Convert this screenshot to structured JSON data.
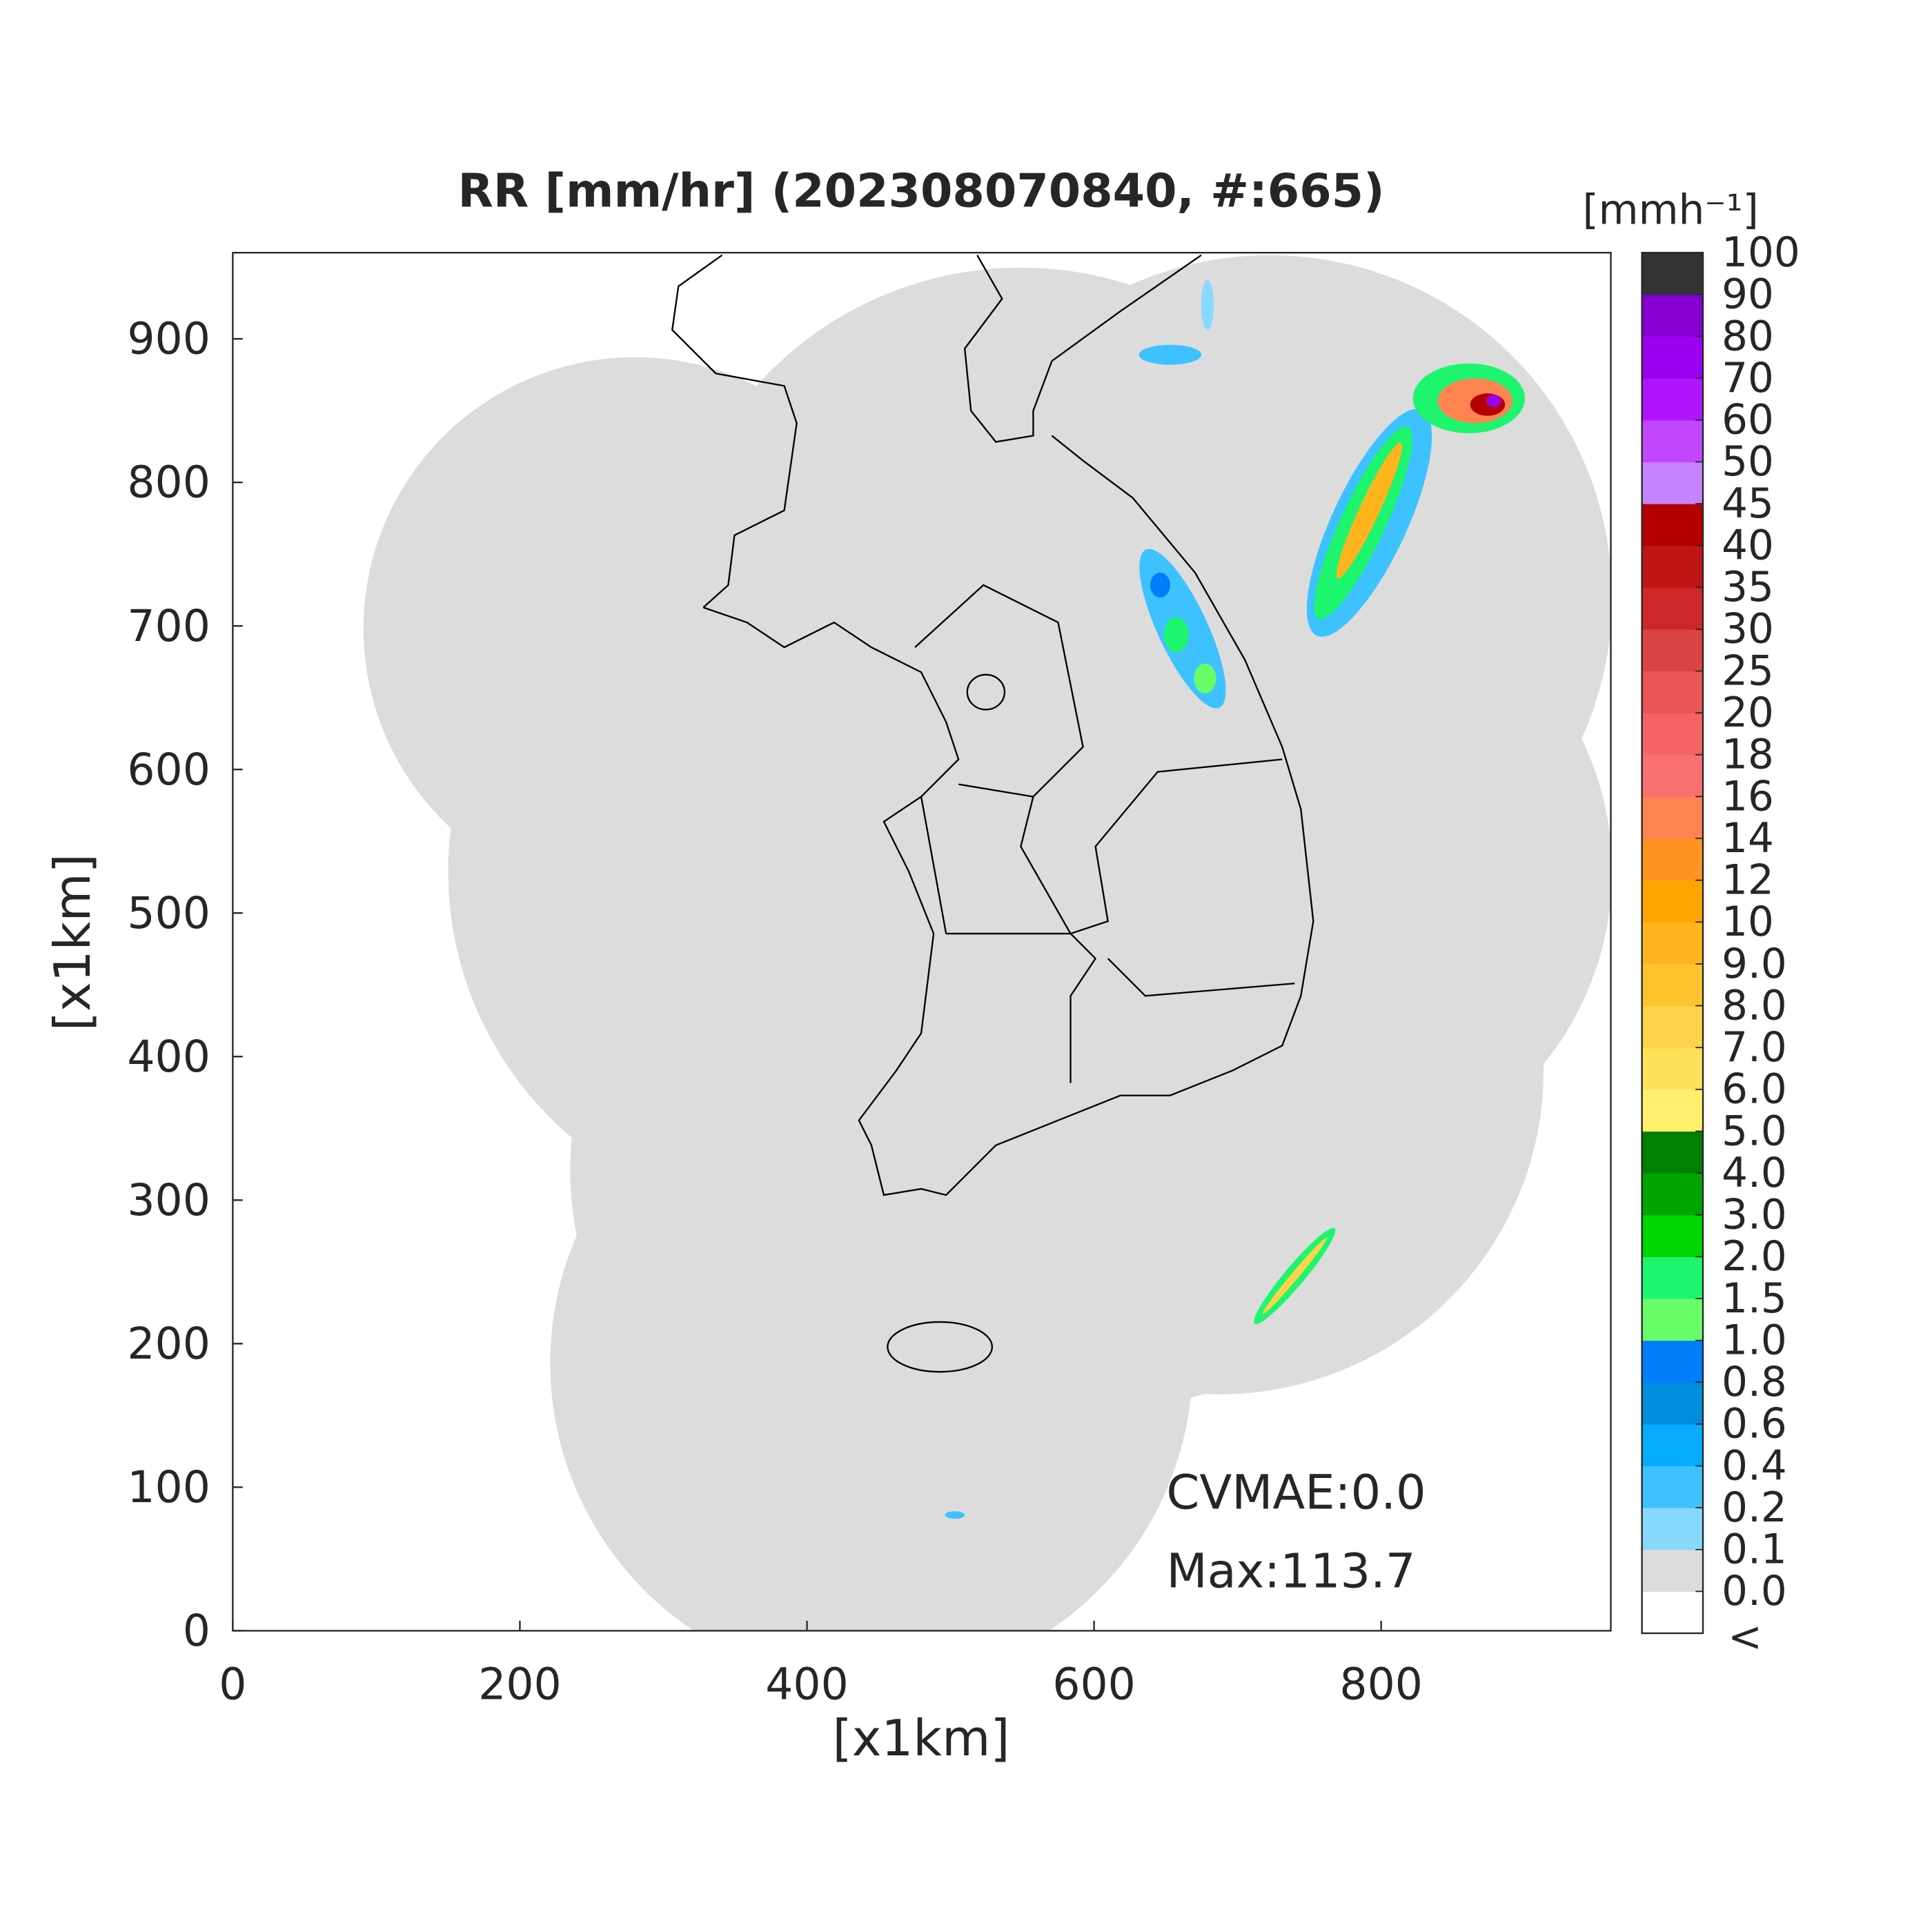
{
  "chart_data": {
    "type": "radar-map",
    "title": "RR [mm/hr] (202308070840, #:665)",
    "x_label": "[x1km]",
    "y_label": "[x1km]",
    "xlim": [
      0,
      960
    ],
    "ylim": [
      0,
      960
    ],
    "xticks": [
      0,
      200,
      400,
      600,
      800
    ],
    "yticks": [
      0,
      100,
      200,
      300,
      400,
      500,
      600,
      700,
      800,
      900
    ],
    "grid": false,
    "annotations": [
      "CVMAE:0.0",
      "Max:113.7"
    ],
    "colorbar": {
      "unit_label": "[mmh⁻¹]",
      "under_label": "<",
      "ticks": [
        {
          "value": 0,
          "label": "0.0"
        },
        0.1,
        0.2,
        0.4,
        0.6,
        0.8,
        {
          "value": 1,
          "label": "1.0"
        },
        1.5,
        {
          "value": 2,
          "label": "2.0"
        },
        {
          "value": 3,
          "label": "3.0"
        },
        {
          "value": 4,
          "label": "4.0"
        },
        {
          "value": 5,
          "label": "5.0"
        },
        {
          "value": 6,
          "label": "6.0"
        },
        {
          "value": 7,
          "label": "7.0"
        },
        {
          "value": 8,
          "label": "8.0"
        },
        {
          "value": 9,
          "label": "9.0"
        },
        10,
        12,
        14,
        16,
        18,
        20,
        25,
        30,
        35,
        40,
        45,
        50,
        60,
        70,
        80,
        90,
        100
      ],
      "colors": [
        "#ffffff",
        "#dcdcdc",
        "#87d9ff",
        "#3ec1ff",
        "#07abff",
        "#008dde",
        "#007ff9",
        "#69fc69",
        "#1ef56e",
        "#00d500",
        "#00a400",
        "#008000",
        "#fff06e",
        "#ffe15a",
        "#ffd24b",
        "#ffc32d",
        "#ffb41e",
        "#ffa500",
        "#ff9423",
        "#ff8450",
        "#f87070",
        "#f46466",
        "#ea5555",
        "#db4343",
        "#cc2828",
        "#bf1515",
        "#b30000",
        "#c583ff",
        "#c346ff",
        "#b014ff",
        "#9b00f0",
        "#8500d0",
        "#333333"
      ]
    }
  }
}
